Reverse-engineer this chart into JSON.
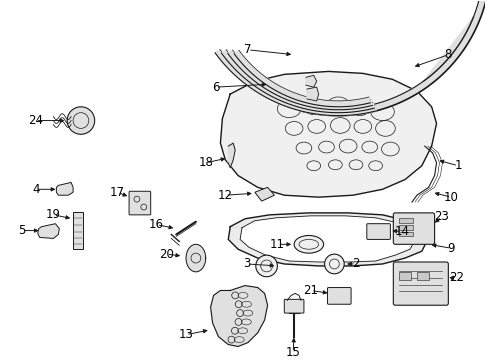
{
  "bg_color": "#ffffff",
  "fig_width": 4.89,
  "fig_height": 3.6,
  "dpi": 100,
  "line_color": "#1a1a1a",
  "fill_light": "#f0f0f0",
  "fill_mid": "#e0e0e0",
  "fill_dark": "#c8c8c8"
}
